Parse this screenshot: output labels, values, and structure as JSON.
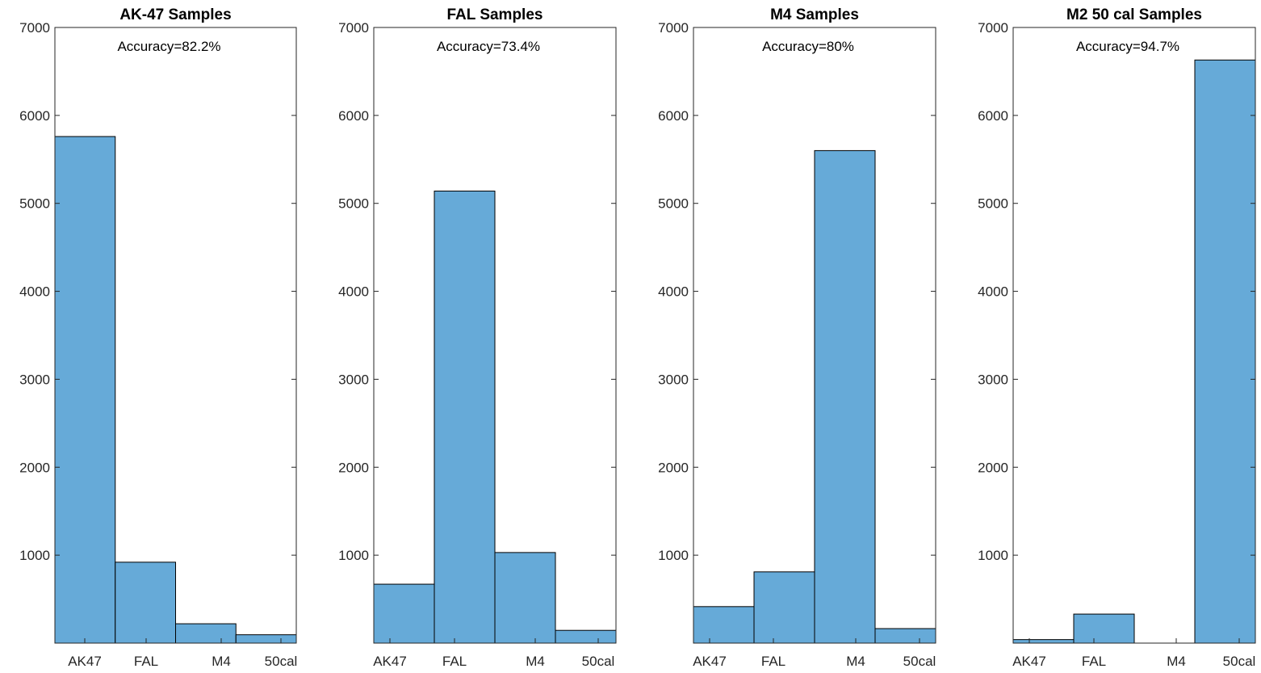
{
  "chart_data": [
    {
      "type": "bar",
      "title": "AK-47 Samples",
      "annotation": "Accuracy=82.2%",
      "categories": [
        "AK47",
        "FAL",
        "M4",
        "50cal"
      ],
      "values": [
        5760,
        920,
        220,
        95
      ],
      "ylim": [
        0,
        7000
      ],
      "yticks": [
        1000,
        2000,
        3000,
        4000,
        5000,
        6000,
        7000
      ],
      "xlabel": "",
      "ylabel": "",
      "bar_color": "#66aad8"
    },
    {
      "type": "bar",
      "title": "FAL Samples",
      "annotation": "Accuracy=73.4%",
      "categories": [
        "AK47",
        "FAL",
        "M4",
        "50cal"
      ],
      "values": [
        670,
        5140,
        1030,
        145
      ],
      "ylim": [
        0,
        7000
      ],
      "yticks": [
        1000,
        2000,
        3000,
        4000,
        5000,
        6000,
        7000
      ],
      "xlabel": "",
      "ylabel": "",
      "bar_color": "#66aad8"
    },
    {
      "type": "bar",
      "title": "M4 Samples",
      "annotation": "Accuracy=80%",
      "categories": [
        "AK47",
        "FAL",
        "M4",
        "50cal"
      ],
      "values": [
        415,
        810,
        5600,
        165
      ],
      "ylim": [
        0,
        7000
      ],
      "yticks": [
        1000,
        2000,
        3000,
        4000,
        5000,
        6000,
        7000
      ],
      "xlabel": "",
      "ylabel": "",
      "bar_color": "#66aad8"
    },
    {
      "type": "bar",
      "title": "M2 50 cal Samples",
      "annotation": "Accuracy=94.7%",
      "categories": [
        "AK47",
        "FAL",
        "M4",
        "50cal"
      ],
      "values": [
        40,
        330,
        0,
        6630
      ],
      "ylim": [
        0,
        7000
      ],
      "yticks": [
        1000,
        2000,
        3000,
        4000,
        5000,
        6000,
        7000
      ],
      "xlabel": "",
      "ylabel": "",
      "bar_color": "#66aad8"
    }
  ]
}
